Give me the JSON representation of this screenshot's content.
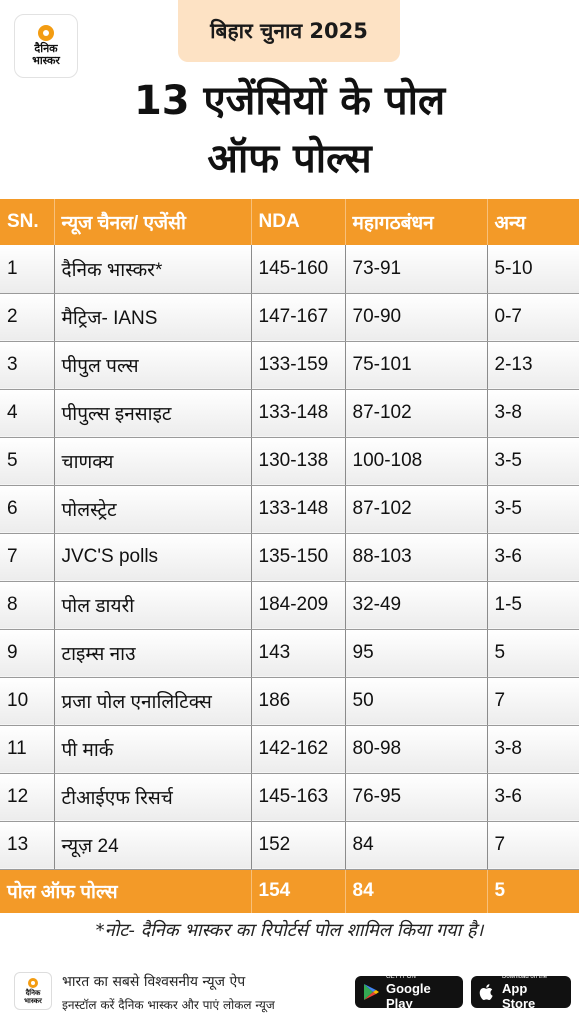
{
  "brand": {
    "logo_line1": "दैनिक",
    "logo_line2": "भास्कर"
  },
  "tag": "बिहार चुनाव 2025",
  "title": {
    "line1": "13 एजेंसियों के पोल",
    "line2": "ऑफ पोल्स"
  },
  "table": {
    "headers": [
      "SN.",
      "न्यूज चैनल/ एजेंसी",
      "NDA",
      "महागठबंधन",
      "अन्य"
    ],
    "rows": [
      [
        "1",
        "दैनिक भास्कर*",
        "145-160",
        "73-91",
        "5-10"
      ],
      [
        "2",
        "मैट्रिज- IANS",
        "147-167",
        "70-90",
        "0-7"
      ],
      [
        "3",
        "पीपुल पल्स",
        "133-159",
        "75-101",
        "2-13"
      ],
      [
        "4",
        "पीपुल्स इनसाइट",
        "133-148",
        "87-102",
        "3-8"
      ],
      [
        "5",
        "चाणक्य",
        "130-138",
        "100-108",
        "3-5"
      ],
      [
        "6",
        "पोलस्ट्रेट",
        "133-148",
        "87-102",
        "3-5"
      ],
      [
        "7",
        "JVC'S polls",
        "135-150",
        "88-103",
        "3-6"
      ],
      [
        "8",
        "पोल डायरी",
        "184-209",
        "32-49",
        "1-5"
      ],
      [
        "9",
        "टाइम्स नाउ",
        "143",
        "95",
        "5"
      ],
      [
        "10",
        "प्रजा पोल एनालिटिक्स",
        "186",
        "50",
        "7"
      ],
      [
        "11",
        "पी मार्क",
        "142-162",
        "80-98",
        "3-8"
      ],
      [
        "12",
        "टीआईएफ रिसर्च",
        "145-163",
        "76-95",
        "3-6"
      ],
      [
        "13",
        "न्यूज़ 24",
        "152",
        "84",
        "7"
      ]
    ],
    "total": {
      "label": "पोल ऑफ पोल्स",
      "nda": "154",
      "mgb": "84",
      "others": "5"
    }
  },
  "note": "*नोट- दैनिक भास्कर का रिपोर्टर्स पोल शामिल किया गया है।",
  "footer": {
    "line1": "भारत का सबसे विश्वसनीय न्यूज ऐप",
    "line2": "इनस्टॉल करें दैनिक भास्कर और पाएं लोकल न्यूज",
    "google_play": {
      "small": "GET IT ON",
      "big": "Google Play"
    },
    "app_store": {
      "small": "Download on the",
      "big": "App Store"
    }
  },
  "colors": {
    "accent": "#f39a28",
    "tag_bg": "#fde2c4"
  }
}
